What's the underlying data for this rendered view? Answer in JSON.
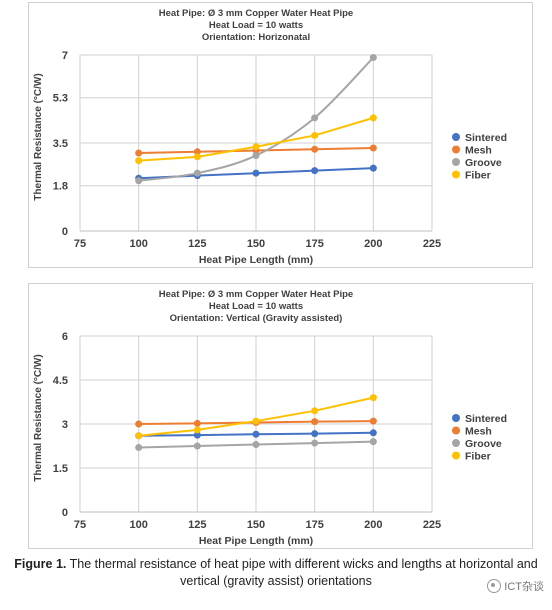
{
  "chart_data": [
    {
      "type": "line",
      "title": [
        "Heat Pipe: Ø 3 mm Copper Water Heat Pipe",
        "Heat Load = 10 watts",
        "Orientation: Horizonatal"
      ],
      "xlabel": "Heat Pipe Length (mm)",
      "ylabel": "Thermal Resistance (°C/W)",
      "xlim": [
        75,
        225
      ],
      "ylim": [
        0,
        7
      ],
      "xticks": [
        75,
        100,
        125,
        150,
        175,
        200,
        225
      ],
      "xtick_labels": [
        "75",
        "100",
        "125",
        "150",
        "175",
        "200",
        "225"
      ],
      "yticks": [
        0,
        1.8,
        3.5,
        5.3,
        7
      ],
      "ytick_labels": [
        "0",
        "1.8",
        "3.5",
        "5.3",
        "7"
      ],
      "grid": true,
      "legend": "right",
      "x": [
        100,
        125,
        150,
        175,
        200
      ],
      "series": [
        {
          "name": "Sintered",
          "color": "#4472c4",
          "values": [
            2.1,
            2.2,
            2.3,
            2.4,
            2.5
          ],
          "smooth": false
        },
        {
          "name": "Mesh",
          "color": "#ed7d31",
          "values": [
            3.1,
            3.15,
            3.2,
            3.25,
            3.3
          ],
          "smooth": false
        },
        {
          "name": "Groove",
          "color": "#a5a5a5",
          "values": [
            2.0,
            2.3,
            3.0,
            4.5,
            6.9
          ],
          "smooth": true
        },
        {
          "name": "Fiber",
          "color": "#ffc000",
          "values": [
            2.8,
            2.95,
            3.35,
            3.8,
            4.5
          ],
          "smooth": false
        }
      ]
    },
    {
      "type": "line",
      "title": [
        "Heat Pipe: Ø 3  mm Copper Water Heat Pipe",
        "Heat Load = 10 watts",
        "Orientation: Vertical (Gravity assisted)"
      ],
      "xlabel": "Heat Pipe Length (mm)",
      "ylabel": "Thermal Resistance (°C/W)",
      "xlim": [
        75,
        225
      ],
      "ylim": [
        0,
        6
      ],
      "xticks": [
        75,
        100,
        125,
        150,
        175,
        200,
        225
      ],
      "xtick_labels": [
        "75",
        "100",
        "125",
        "150",
        "175",
        "200",
        "225"
      ],
      "yticks": [
        0,
        1.5,
        3,
        4.5,
        6
      ],
      "ytick_labels": [
        "0",
        "1.5",
        "3",
        "4.5",
        "6"
      ],
      "grid": true,
      "legend": "right",
      "x": [
        100,
        125,
        150,
        175,
        200
      ],
      "series": [
        {
          "name": "Sintered",
          "color": "#4472c4",
          "values": [
            2.6,
            2.62,
            2.65,
            2.67,
            2.7
          ],
          "smooth": false
        },
        {
          "name": "Mesh",
          "color": "#ed7d31",
          "values": [
            3.0,
            3.02,
            3.05,
            3.08,
            3.1
          ],
          "smooth": false
        },
        {
          "name": "Groove",
          "color": "#a5a5a5",
          "values": [
            2.2,
            2.25,
            2.3,
            2.35,
            2.4
          ],
          "smooth": false
        },
        {
          "name": "Fiber",
          "color": "#ffc000",
          "values": [
            2.6,
            2.8,
            3.1,
            3.45,
            3.9
          ],
          "smooth": false
        }
      ]
    }
  ],
  "caption": {
    "label": "Figure 1.",
    "text": " The thermal resistance of heat pipe with different wicks and lengths at horizontal and vertical (gravity assist) orientations"
  },
  "watermark": "ICT杂谈"
}
